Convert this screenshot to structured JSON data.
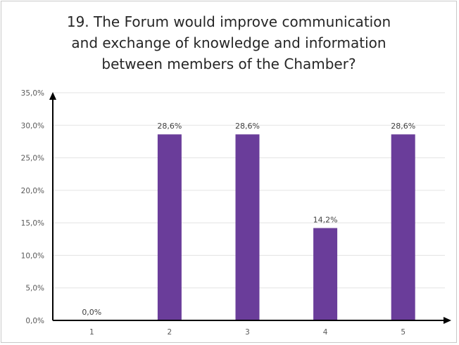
{
  "chart_data": {
    "type": "bar",
    "title_lines": [
      "19. The Forum would improve communication",
      "and exchange of knowledge and information",
      "between members of the Chamber?"
    ],
    "categories": [
      "1",
      "2",
      "3",
      "4",
      "5"
    ],
    "values": [
      0.0,
      28.6,
      28.6,
      14.2,
      28.6
    ],
    "data_labels": [
      "0,0%",
      "28,6%",
      "28,6%",
      "14,2%",
      "28,6%"
    ],
    "y_ticks": [
      0,
      5,
      10,
      15,
      20,
      25,
      30,
      35
    ],
    "y_tick_labels": [
      "0,0%",
      "5,0%",
      "10,0%",
      "15,0%",
      "20,0%",
      "25,0%",
      "30,0%",
      "35,0%"
    ],
    "ylim": [
      0,
      35
    ],
    "grid": true,
    "bar_color": "#6a3d9a",
    "legend": "none",
    "xlabel": "",
    "ylabel": ""
  }
}
